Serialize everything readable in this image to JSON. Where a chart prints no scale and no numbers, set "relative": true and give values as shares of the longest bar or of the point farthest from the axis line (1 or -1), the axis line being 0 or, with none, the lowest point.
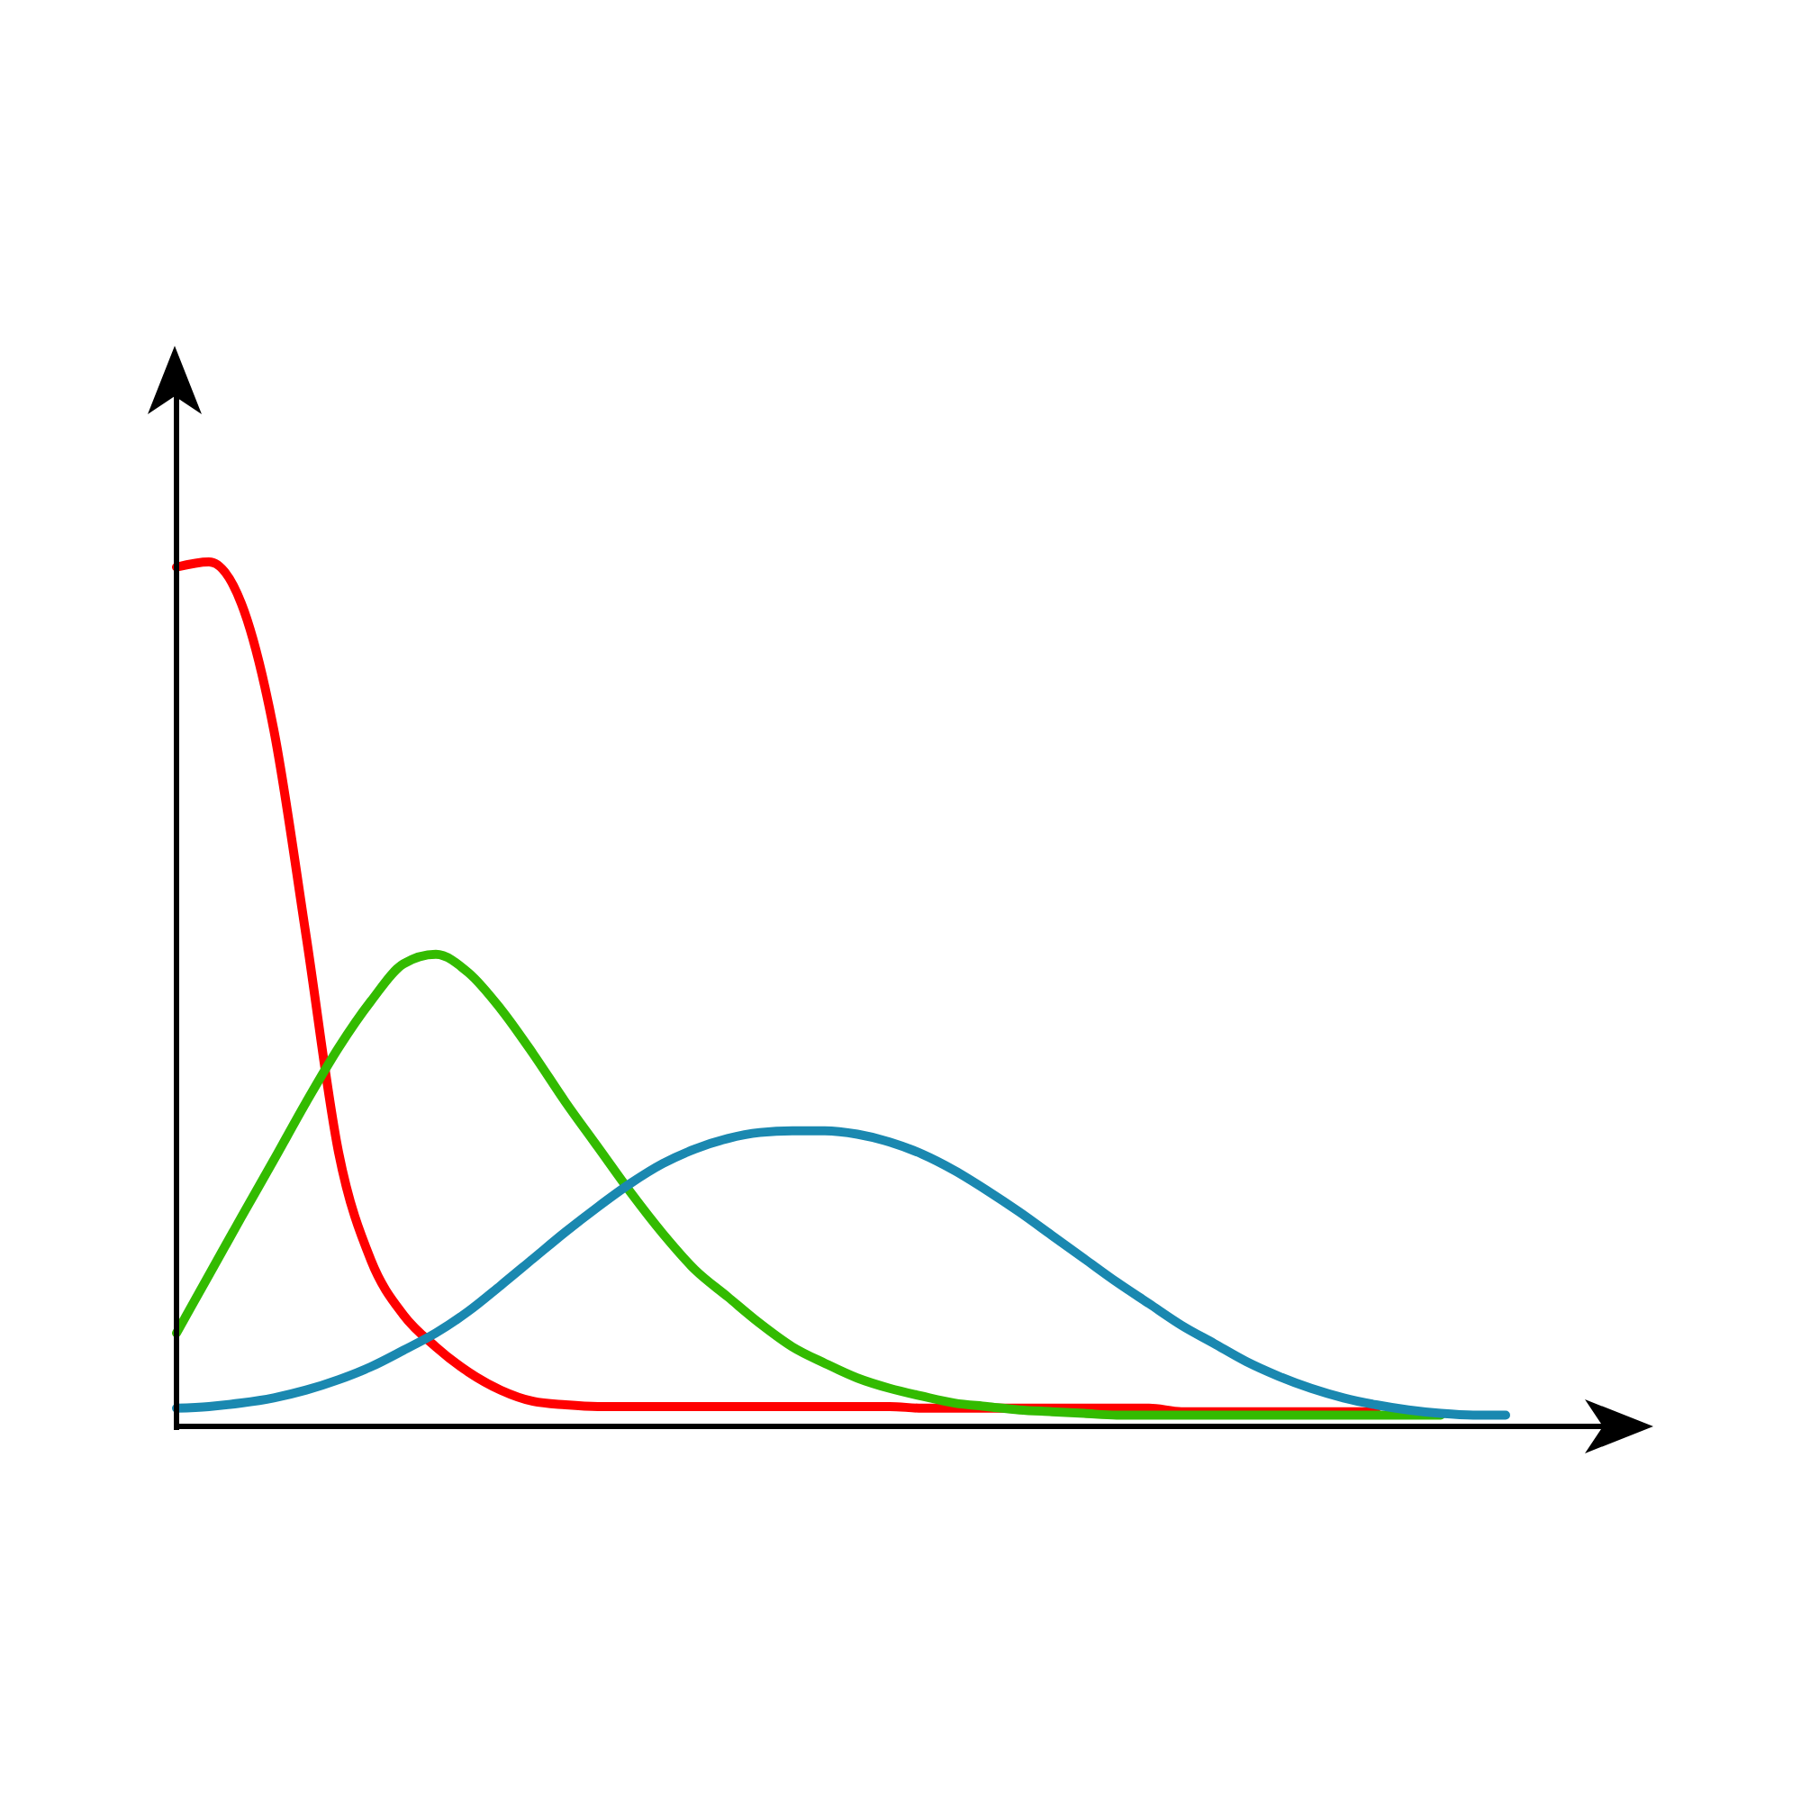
{
  "chart_data": {
    "type": "line",
    "relative": true,
    "categories": [
      null,
      null,
      null,
      null,
      null,
      null,
      null,
      null,
      null,
      null,
      null,
      null,
      null,
      null,
      null,
      null,
      null,
      null,
      null,
      null,
      null,
      null,
      null,
      null,
      null,
      null,
      null,
      null,
      null,
      null,
      null,
      null,
      null,
      null,
      null,
      null,
      null,
      null,
      null,
      null,
      null,
      null
    ],
    "series": [
      {
        "color": "#ff0000",
        "values": [
          0.994,
          1.0,
          0.952,
          0.806,
          0.567,
          0.317,
          0.192,
          0.129,
          0.092,
          0.063,
          0.042,
          0.029,
          0.025,
          0.023,
          0.023,
          0.023,
          0.023,
          0.023,
          0.023,
          0.023,
          0.023,
          0.023,
          0.023,
          0.021,
          0.021,
          0.021,
          0.021,
          0.021,
          0.021,
          0.021,
          0.021,
          0.017,
          0.017,
          0.017,
          0.017,
          0.017,
          0.017,
          0.017,
          null,
          null,
          null,
          null
        ]
      },
      {
        "color": "#33bb00",
        "values": [
          0.108,
          0.175,
          0.242,
          0.308,
          0.375,
          0.438,
          0.492,
          0.535,
          0.546,
          0.525,
          0.483,
          0.431,
          0.375,
          0.323,
          0.271,
          0.223,
          0.181,
          0.15,
          0.119,
          0.092,
          0.073,
          0.056,
          0.044,
          0.035,
          0.027,
          0.023,
          0.019,
          0.017,
          0.015,
          0.013,
          0.013,
          0.013,
          0.013,
          0.013,
          0.013,
          0.013,
          0.013,
          0.013,
          0.013,
          0.013,
          null,
          null
        ]
      },
      {
        "color": "#1a88b0",
        "values": [
          0.021,
          0.023,
          0.027,
          0.033,
          0.042,
          0.054,
          0.069,
          0.088,
          0.108,
          0.133,
          0.163,
          0.194,
          0.225,
          0.254,
          0.281,
          0.304,
          0.321,
          0.333,
          0.34,
          0.342,
          0.342,
          0.338,
          0.329,
          0.315,
          0.296,
          0.273,
          0.248,
          0.221,
          0.194,
          0.167,
          0.142,
          0.117,
          0.096,
          0.075,
          0.058,
          0.044,
          0.033,
          0.025,
          0.019,
          0.015,
          0.013,
          0.013
        ]
      }
    ]
  }
}
